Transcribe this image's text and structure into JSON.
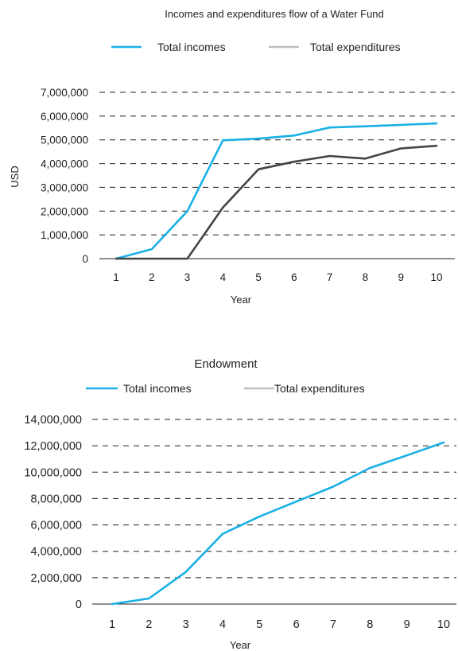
{
  "chart_data": [
    {
      "type": "line",
      "title": "Incomes and expenditures flow of a Water Fund",
      "xlabel": "Year",
      "ylabel": "USD",
      "categories": [
        "1",
        "2",
        "3",
        "4",
        "5",
        "6",
        "7",
        "8",
        "9",
        "10"
      ],
      "yticks": [
        "0",
        "1,000,000",
        "2,000,000",
        "3,000,000",
        "4,000,000",
        "5,000,000",
        "6,000,000",
        "7,000,000"
      ],
      "ylim": [
        0,
        7000000
      ],
      "grid": true,
      "legend_position": "top-center",
      "series": [
        {
          "name": "Total incomes",
          "color": "#1ab0e6",
          "values": [
            0,
            400000,
            2000000,
            4980000,
            5050000,
            5180000,
            5520000,
            5570000,
            5630000,
            5690000
          ]
        },
        {
          "name": "Total expenditures",
          "color": "#444444",
          "legend_color": "#bfbfbf",
          "values": [
            0,
            0,
            0,
            2150000,
            3760000,
            4080000,
            4320000,
            4210000,
            4640000,
            4750000
          ]
        }
      ]
    },
    {
      "type": "line",
      "title": "Endowment",
      "xlabel": "Year",
      "ylabel": "",
      "categories": [
        "1",
        "2",
        "3",
        "4",
        "5",
        "6",
        "7",
        "8",
        "9",
        "10"
      ],
      "yticks": [
        "0",
        "2,000,000",
        "4,000,000",
        "6,000,000",
        "8,000,000",
        "10,000,000",
        "12,000,000",
        "14,000,000"
      ],
      "ylim": [
        0,
        14000000
      ],
      "grid": true,
      "legend_position": "top-center",
      "legend": [
        {
          "name": "Total incomes",
          "color": "#1ab0e6"
        },
        {
          "name": "Total expenditures",
          "color": "#bfbfbf"
        }
      ],
      "series": [
        {
          "name": "Total incomes",
          "color": "#1ab0e6",
          "values": [
            0,
            420000,
            2430000,
            5320000,
            6630000,
            7770000,
            8900000,
            10320000,
            11270000,
            12250000
          ]
        }
      ]
    }
  ]
}
